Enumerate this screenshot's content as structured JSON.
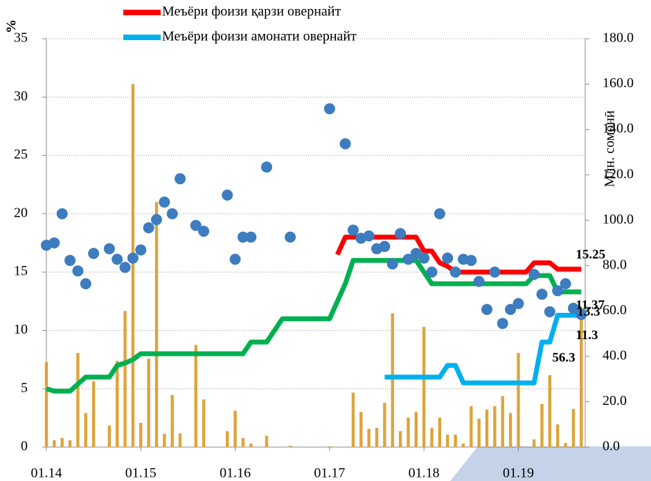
{
  "chart_data": {
    "type": "combo",
    "y_label": "%",
    "y2_label": "Млн. сомонӣ",
    "categories": [
      "01.14",
      null,
      null,
      null,
      null,
      null,
      null,
      null,
      null,
      null,
      null,
      null,
      "01.15",
      null,
      null,
      null,
      null,
      null,
      null,
      null,
      null,
      null,
      null,
      null,
      "01.16",
      null,
      null,
      null,
      null,
      null,
      null,
      null,
      null,
      null,
      null,
      null,
      "01.17",
      null,
      null,
      null,
      null,
      null,
      null,
      null,
      null,
      null,
      null,
      null,
      "01.18",
      null,
      null,
      null,
      null,
      null,
      null,
      null,
      null,
      null,
      null,
      null,
      "01.19",
      null,
      null,
      null,
      null,
      null,
      null,
      null,
      null
    ],
    "ylim": [
      0,
      35
    ],
    "yticks": [
      0,
      5,
      10,
      15,
      20,
      25,
      30,
      35
    ],
    "y2lim": [
      0,
      180
    ],
    "y2ticks": [
      {
        "value": 0,
        "label": "0.0"
      },
      {
        "value": 20,
        "label": "20.0"
      },
      {
        "value": 40,
        "label": "40.0"
      },
      {
        "value": 60,
        "label": "60.0"
      },
      {
        "value": 80,
        "label": "80.0"
      },
      {
        "value": 100,
        "label": "100.0"
      },
      {
        "value": 120,
        "label": "120.0"
      },
      {
        "value": 140,
        "label": "140.0"
      },
      {
        "value": 160,
        "label": "160.0"
      },
      {
        "value": 180,
        "label": "180.0"
      }
    ],
    "grid": true,
    "legend": "top",
    "series": [
      {
        "type": "bar",
        "axis": "y2",
        "color": "#dca43c",
        "values": [
          37.5,
          3,
          4,
          3,
          41.5,
          15,
          29,
          0,
          9.5,
          38,
          60,
          160,
          10.7,
          39,
          108,
          5.8,
          23,
          6,
          0,
          45,
          21,
          0,
          0,
          7,
          16,
          4,
          1.5,
          0,
          5,
          0,
          0,
          0.6,
          0,
          0,
          0,
          0,
          0.3,
          0,
          0,
          24,
          15.5,
          8,
          8.5,
          19.5,
          59,
          7,
          13,
          15.5,
          53,
          8.5,
          13,
          5.5,
          5.5,
          1.5,
          18,
          12.5,
          16.5,
          18,
          22.5,
          15,
          41.5,
          0,
          3.4,
          19,
          31.7,
          10,
          1.8,
          16.8,
          56.3
        ]
      },
      {
        "type": "line",
        "color": "#00b050",
        "values": [
          5,
          4.8,
          4.8,
          4.8,
          5.4,
          6,
          6,
          6,
          6,
          7,
          7.2,
          7.5,
          8,
          8,
          8,
          8,
          8,
          8,
          8,
          8,
          8,
          8,
          8,
          8,
          8,
          8,
          9,
          9,
          9,
          10,
          11,
          11,
          11,
          11,
          11,
          11,
          11,
          12.5,
          14,
          16,
          16,
          16,
          16,
          16,
          16,
          16,
          16,
          16,
          15,
          14,
          14,
          14,
          14,
          14,
          14,
          14,
          14,
          14,
          14,
          14,
          14,
          14,
          14.7,
          14.7,
          14.7,
          13.3,
          13.3,
          13.3,
          13.3
        ]
      },
      {
        "type": "line",
        "name": "Меъёри фоизи қарзи овернайт",
        "color": "#ff0000",
        "values": [
          null,
          null,
          null,
          null,
          null,
          null,
          null,
          null,
          null,
          null,
          null,
          null,
          null,
          null,
          null,
          null,
          null,
          null,
          null,
          null,
          null,
          null,
          null,
          null,
          null,
          null,
          null,
          null,
          null,
          null,
          null,
          null,
          null,
          null,
          null,
          null,
          null,
          16.5,
          18,
          18,
          18,
          18,
          18,
          18,
          18,
          18,
          18,
          18,
          16.8,
          16.8,
          15.8,
          15.5,
          15,
          15,
          15,
          15,
          15,
          15,
          15,
          15,
          15,
          15,
          15.8,
          15.8,
          15.8,
          15.25,
          15.25,
          15.25,
          15.25
        ]
      },
      {
        "type": "line",
        "name": "Меъёри фоизи амонати овернайт",
        "color": "#00b0f0",
        "values": [
          null,
          null,
          null,
          null,
          null,
          null,
          null,
          null,
          null,
          null,
          null,
          null,
          null,
          null,
          null,
          null,
          null,
          null,
          null,
          null,
          null,
          null,
          null,
          null,
          null,
          null,
          null,
          null,
          null,
          null,
          null,
          null,
          null,
          null,
          null,
          null,
          null,
          null,
          null,
          null,
          null,
          null,
          null,
          6,
          6,
          6,
          6,
          6,
          6,
          6,
          6,
          7,
          7,
          5.5,
          5.5,
          5.5,
          5.5,
          5.5,
          5.5,
          5.5,
          5.5,
          5.5,
          5.5,
          9,
          9,
          11.3,
          11.3,
          11.3,
          11.3
        ]
      },
      {
        "type": "scatter",
        "color": "#3d7cbf",
        "values": [
          17.3,
          17.5,
          20,
          16,
          15.1,
          14,
          16.6,
          null,
          17,
          16.1,
          15.4,
          16.2,
          16.9,
          18.8,
          19.5,
          21,
          20,
          23,
          null,
          19,
          18.5,
          null,
          null,
          21.6,
          16.1,
          18,
          18,
          null,
          24,
          null,
          null,
          18,
          null,
          null,
          null,
          null,
          29,
          null,
          26,
          18.6,
          17.9,
          18.1,
          17,
          17.2,
          15.7,
          18.3,
          16.1,
          16.6,
          16.2,
          15,
          20,
          16.2,
          15,
          16.1,
          16,
          14.2,
          11.8,
          15,
          10.6,
          11.8,
          12.3,
          null,
          14.8,
          13.1,
          11.6,
          13.4,
          14,
          11.9,
          11.37
        ]
      }
    ]
  }
}
